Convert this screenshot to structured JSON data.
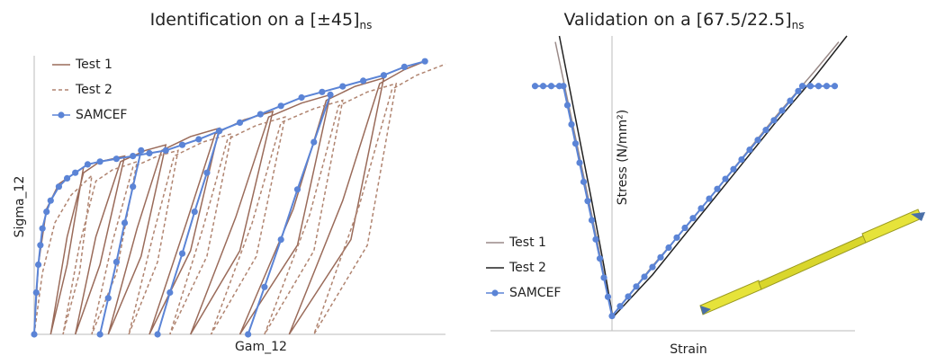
{
  "chart_data": [
    {
      "type": "line",
      "title": "Identification on a [±45]",
      "title_subscript": "ns",
      "x_label": "Gam_12",
      "y_label": "Sigma_12",
      "xlim": [
        0,
        100
      ],
      "ylim": [
        0,
        100
      ],
      "legend": "upper left",
      "series": [
        {
          "name": "Test 1",
          "color": "#9a6b5a",
          "dash": false,
          "marker": false,
          "x": [
            0,
            1,
            3,
            6,
            12,
            8,
            4,
            8,
            12,
            16,
            22,
            16,
            10,
            15,
            21,
            27,
            32,
            26,
            18,
            25,
            31,
            38,
            45,
            38,
            28,
            37,
            44,
            51,
            58,
            50,
            38,
            49,
            57,
            65,
            72,
            64,
            50,
            63,
            71,
            78,
            85,
            77,
            62,
            75,
            84,
            90,
            95
          ],
          "values": [
            0,
            25,
            45,
            54,
            60,
            25,
            0,
            35,
            58,
            62,
            64,
            25,
            0,
            35,
            62,
            66,
            68,
            28,
            0,
            38,
            66,
            71,
            74,
            30,
            0,
            40,
            72,
            77,
            80,
            30,
            0,
            42,
            78,
            83,
            86,
            32,
            0,
            45,
            84,
            89,
            92,
            34,
            0,
            48,
            90,
            95,
            98
          ]
        },
        {
          "name": "Test 2",
          "color": "#b08470",
          "dash": true,
          "marker": false,
          "x": [
            0,
            2,
            5,
            9,
            14,
            11,
            7,
            11,
            15,
            19,
            25,
            20,
            14,
            19,
            24,
            30,
            35,
            30,
            23,
            29,
            34,
            41,
            48,
            42,
            33,
            41,
            47,
            54,
            61,
            54,
            43,
            53,
            60,
            68,
            75,
            68,
            56,
            67,
            74,
            81,
            88,
            81,
            68,
            79,
            87,
            93,
            100
          ],
          "values": [
            0,
            22,
            40,
            50,
            57,
            22,
            0,
            32,
            55,
            59,
            62,
            22,
            0,
            33,
            60,
            64,
            66,
            26,
            0,
            36,
            64,
            69,
            72,
            28,
            0,
            38,
            70,
            75,
            78,
            28,
            0,
            40,
            76,
            81,
            84,
            30,
            0,
            43,
            82,
            87,
            90,
            32,
            0,
            46,
            88,
            93,
            97
          ]
        },
        {
          "name": "SAMCEF",
          "color": "#5b84d6",
          "dash": false,
          "marker": true,
          "x": [
            0,
            0.5,
            1,
            1.5,
            2,
            3,
            4,
            6,
            8,
            10,
            13,
            16,
            20,
            24,
            28,
            32,
            36,
            40,
            45,
            50,
            55,
            60,
            65,
            70,
            75,
            80,
            85,
            90,
            95,
            null,
            16,
            18,
            20,
            22,
            24,
            26,
            null,
            30,
            33,
            36,
            39,
            42,
            45,
            null,
            52,
            56,
            60,
            64,
            68,
            72
          ],
          "values": [
            0,
            15,
            25,
            32,
            38,
            44,
            48,
            53,
            56,
            58,
            61,
            62,
            63,
            64,
            65,
            66,
            68,
            70,
            73,
            76,
            79,
            82,
            85,
            87,
            89,
            91,
            93,
            96,
            98,
            null,
            0,
            13,
            26,
            40,
            53,
            66,
            null,
            0,
            15,
            29,
            44,
            58,
            73,
            null,
            0,
            17,
            34,
            52,
            69,
            86
          ]
        }
      ]
    },
    {
      "type": "line",
      "title": "Validation on a [67.5/22.5]",
      "title_subscript": "ns",
      "x_label": "Strain",
      "y_label": "Stress (N/mm²)",
      "xlim": [
        -30,
        60
      ],
      "ylim": [
        0,
        100
      ],
      "legend": "lower left",
      "series": [
        {
          "name": "Test 1",
          "color": "#9a8a88",
          "dash": false,
          "marker": false,
          "x": [
            -14,
            -10,
            -6,
            -3,
            0,
            10,
            20,
            30,
            40,
            50,
            56
          ],
          "values": [
            98,
            72,
            46,
            26,
            5,
            22,
            38,
            55,
            72,
            88,
            98
          ]
        },
        {
          "name": "Test 2",
          "color": "#222222",
          "dash": false,
          "marker": false,
          "x": [
            -13,
            -9,
            -5,
            -2,
            0,
            0.5,
            10,
            20,
            30,
            40,
            50,
            58
          ],
          "values": [
            100,
            72,
            44,
            22,
            6,
            5,
            19,
            36,
            53,
            70,
            86,
            100
          ]
        },
        {
          "name": "SAMCEF",
          "color": "#5b84d6",
          "dash": false,
          "marker": true,
          "x": [
            -19,
            -17,
            -15,
            -13,
            -12,
            -11,
            -10,
            -9,
            -8,
            -7,
            -6,
            -5,
            -4,
            -3,
            -2,
            -1,
            0,
            2,
            4,
            6,
            8,
            10,
            12,
            14,
            16,
            18,
            20,
            22,
            24,
            26,
            28,
            30,
            32,
            34,
            36,
            38,
            40,
            42,
            44,
            46,
            47,
            49,
            51,
            53,
            55
          ],
          "values": [
            83,
            83,
            83,
            83,
            83,
            76.5,
            70,
            63.5,
            57,
            50.5,
            44,
            37.5,
            31,
            24.5,
            18,
            11.5,
            5,
            8.3,
            11.6,
            15,
            18.3,
            21.6,
            24.9,
            28.2,
            31.6,
            34.9,
            38.2,
            41.5,
            44.8,
            48.1,
            51.5,
            54.8,
            58.1,
            61.4,
            64.7,
            68.1,
            71.4,
            74.7,
            78,
            81.3,
            83,
            83,
            83,
            83,
            83
          ]
        }
      ]
    }
  ]
}
